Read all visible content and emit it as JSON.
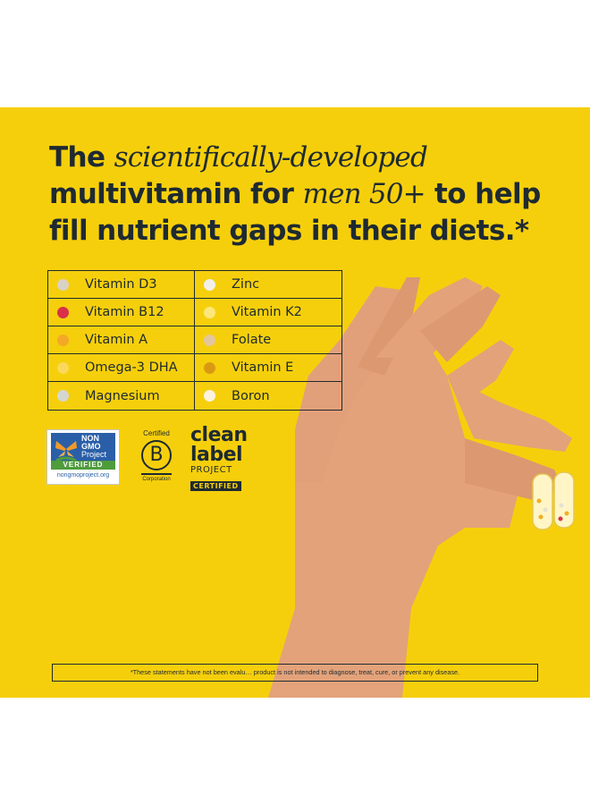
{
  "headline": {
    "l1_a": "The ",
    "l1_b": "scientifically-developed",
    "l2_a": "multivitamin for ",
    "l2_b": "men 50+",
    "l2_c": " to help",
    "l3": "fill nutrient gaps in their diets.*"
  },
  "nutrients": [
    {
      "label": "Vitamin D3",
      "color": "#d9d2c4"
    },
    {
      "label": "Zinc",
      "color": "#f2f0e8"
    },
    {
      "label": "Vitamin B12",
      "color": "#d9304a"
    },
    {
      "label": "Vitamin K2",
      "color": "#fde77a"
    },
    {
      "label": "Vitamin A",
      "color": "#f3a925"
    },
    {
      "label": "Folate",
      "color": "#e3c79c"
    },
    {
      "label": "Omega-3 DHA",
      "color": "#f9d85a"
    },
    {
      "label": "Vitamin E",
      "color": "#d99a12"
    },
    {
      "label": "Magnesium",
      "color": "#d4d6d2"
    },
    {
      "label": "Boron",
      "color": "#fbf2df"
    }
  ],
  "badges": {
    "ngmo_l1": "NON",
    "ngmo_l2": "GMO",
    "ngmo_l3": "Project",
    "ngmo_verified": "VERIFIED",
    "ngmo_url": "nongmoproject.org",
    "bcorp_certified": "Certified",
    "bcorp_letter": "B",
    "bcorp_corp": "Corporation",
    "clean_1": "clean",
    "clean_2": "label",
    "clean_3": "PROJECT",
    "clean_4": "CERTIFIED"
  },
  "disclaimer": "*These statements have not been evalu… product is not intended to diagnose, treat, cure, or prevent any disease.",
  "colors": {
    "background": "#f6cf0c",
    "text": "#1e2a32",
    "skin": "#e3a27a"
  }
}
